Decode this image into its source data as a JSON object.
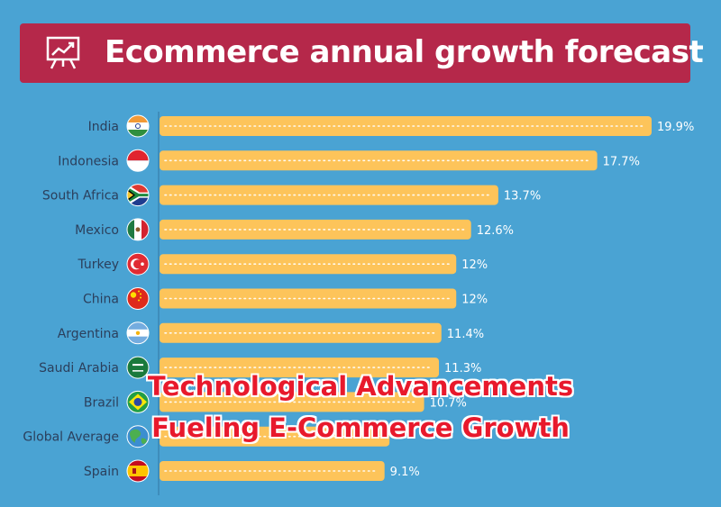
{
  "header": {
    "title": "Ecommerce annual growth forecast",
    "icon": "presentation-chart-icon"
  },
  "overlay": {
    "line1": "Technological Advancements",
    "line2": "Fueling E-Commerce Growth"
  },
  "colors": {
    "background": "#4aa3d3",
    "banner": "#b5284a",
    "bar": "#fdc45a",
    "label": "#2b3f5c",
    "value": "#ffffff"
  },
  "chart_data": {
    "type": "bar",
    "orientation": "horizontal",
    "title": "Ecommerce annual growth forecast",
    "categories": [
      "India",
      "Indonesia",
      "South Africa",
      "Mexico",
      "Turkey",
      "China",
      "Argentina",
      "Saudi Arabia",
      "Brazil",
      "Global Average",
      "Spain"
    ],
    "values": [
      19.9,
      17.7,
      13.7,
      12.6,
      12,
      12,
      11.4,
      11.3,
      10.7,
      9.3,
      9.1
    ],
    "value_labels": [
      "19.9%",
      "17.7%",
      "13.7%",
      "12.6%",
      "12%",
      "12%",
      "11.4%",
      "11.3%",
      "10.7%",
      "",
      "9.1%"
    ],
    "flag_icons": [
      "india-flag-icon",
      "indonesia-flag-icon",
      "south-africa-flag-icon",
      "mexico-flag-icon",
      "turkey-flag-icon",
      "china-flag-icon",
      "argentina-flag-icon",
      "saudi-arabia-flag-icon",
      "brazil-flag-icon",
      "globe-icon",
      "spain-flag-icon"
    ],
    "xlim": [
      0,
      19.9
    ],
    "grid": false
  }
}
